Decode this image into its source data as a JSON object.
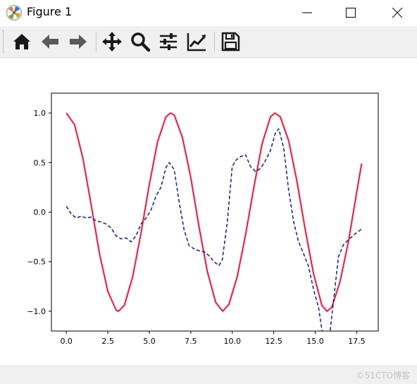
{
  "window": {
    "title": "Figure 1",
    "app_icon": "matplotlib-logo-icon"
  },
  "window_controls": {
    "minimize_icon": "minimize-icon",
    "maximize_icon": "maximize-icon",
    "close_icon": "close-icon"
  },
  "toolbar": {
    "items": [
      {
        "id": "home",
        "icon": "home-icon",
        "tooltip": ""
      },
      {
        "id": "back",
        "icon": "arrow-left-icon",
        "tooltip": ""
      },
      {
        "id": "forward",
        "icon": "arrow-right-icon",
        "tooltip": ""
      },
      {
        "id": "pan",
        "icon": "move-icon",
        "tooltip": ""
      },
      {
        "id": "zoom",
        "icon": "magnifier-icon",
        "tooltip": ""
      },
      {
        "id": "subplots",
        "icon": "sliders-icon",
        "tooltip": ""
      },
      {
        "id": "customize",
        "icon": "line-chart-icon",
        "tooltip": ""
      },
      {
        "id": "save",
        "icon": "floppy-disk-icon",
        "tooltip": ""
      }
    ]
  },
  "statusbar": {
    "watermark": "©51CTO博客"
  },
  "colors": {
    "series_solid": "#c8102e",
    "series_solid_glow": "#f4b8c8",
    "series_dashed": "#1a1a80",
    "axes": "#000000",
    "toolbar_bg": "#f0f0f0",
    "icon": "#1a1a1a"
  },
  "chart_data": {
    "type": "line",
    "title": "",
    "xlabel": "",
    "ylabel": "",
    "xlim": [
      -0.9,
      18.8
    ],
    "ylim": [
      -1.2,
      1.2
    ],
    "xticks": [
      0.0,
      2.5,
      5.0,
      7.5,
      10.0,
      12.5,
      15.0,
      17.5
    ],
    "xtick_labels": [
      "0.0",
      "2.5",
      "5.0",
      "7.5",
      "10.0",
      "12.5",
      "15.0",
      "17.5"
    ],
    "yticks": [
      -1.0,
      -0.5,
      0.0,
      0.5,
      1.0
    ],
    "ytick_labels": [
      "−1.0",
      "−0.5",
      "0.0",
      "0.5",
      "1.0"
    ],
    "grid": false,
    "legend": "none",
    "series": [
      {
        "style": "solid",
        "x": [
          0.0,
          0.5,
          1.0,
          1.5,
          2.0,
          2.5,
          3.0,
          3.14,
          3.5,
          4.0,
          4.5,
          5.0,
          5.5,
          6.0,
          6.28,
          6.5,
          7.0,
          7.5,
          8.0,
          8.5,
          9.0,
          9.42,
          9.8,
          10.3,
          10.8,
          11.3,
          11.8,
          12.3,
          12.57,
          12.9,
          13.4,
          13.9,
          14.4,
          14.9,
          15.4,
          15.71,
          16.0,
          16.5,
          17.0,
          17.5,
          17.8
        ],
        "y": [
          1.0,
          0.88,
          0.54,
          0.07,
          -0.42,
          -0.8,
          -0.99,
          -1.0,
          -0.94,
          -0.65,
          -0.21,
          0.28,
          0.71,
          0.96,
          1.0,
          0.98,
          0.75,
          0.35,
          -0.15,
          -0.6,
          -0.91,
          -1.0,
          -0.93,
          -0.65,
          -0.23,
          0.25,
          0.69,
          0.96,
          1.0,
          0.96,
          0.72,
          0.31,
          -0.18,
          -0.62,
          -0.94,
          -1.0,
          -0.96,
          -0.7,
          -0.3,
          0.2,
          0.49
        ]
      },
      {
        "style": "dashed",
        "x": [
          0.0,
          0.3,
          0.6,
          0.9,
          1.2,
          1.5,
          1.8,
          2.1,
          2.4,
          2.7,
          3.0,
          3.3,
          3.6,
          3.9,
          4.2,
          4.5,
          4.8,
          5.1,
          5.4,
          5.7,
          6.0,
          6.2,
          6.5,
          6.8,
          7.1,
          7.4,
          7.7,
          8.0,
          8.3,
          8.6,
          8.9,
          9.2,
          9.4,
          9.7,
          10.0,
          10.2,
          10.5,
          10.8,
          11.1,
          11.4,
          11.7,
          12.0,
          12.3,
          12.6,
          12.8,
          13.1,
          13.4,
          13.7,
          14.0,
          14.3,
          14.6,
          14.9,
          15.2,
          15.5,
          15.8,
          16.1,
          16.4,
          16.7,
          17.0,
          17.4,
          17.8
        ],
        "y": [
          0.06,
          -0.02,
          -0.06,
          -0.04,
          -0.06,
          -0.05,
          -0.09,
          -0.1,
          -0.12,
          -0.16,
          -0.24,
          -0.27,
          -0.26,
          -0.3,
          -0.24,
          -0.12,
          -0.06,
          0.02,
          0.16,
          0.25,
          0.45,
          0.5,
          0.43,
          0.1,
          -0.18,
          -0.34,
          -0.37,
          -0.39,
          -0.4,
          -0.44,
          -0.5,
          -0.54,
          -0.48,
          -0.1,
          0.46,
          0.52,
          0.56,
          0.58,
          0.46,
          0.41,
          0.44,
          0.52,
          0.62,
          0.8,
          0.84,
          0.65,
          0.22,
          -0.1,
          -0.3,
          -0.42,
          -0.55,
          -0.78,
          -0.96,
          -1.3,
          -1.35,
          -0.9,
          -0.45,
          -0.33,
          -0.28,
          -0.22,
          -0.17
        ]
      }
    ]
  }
}
